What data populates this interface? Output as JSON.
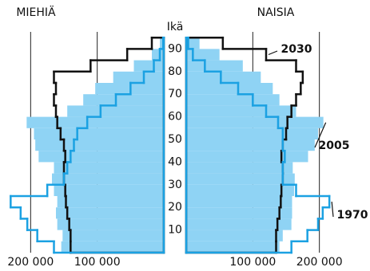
{
  "chart_data": {
    "type": "pyramid",
    "left_title": "MIEHIÄ",
    "right_title": "NAISIA",
    "y_label": "Ikä",
    "bins": [
      0,
      5,
      10,
      15,
      20,
      25,
      30,
      35,
      40,
      45,
      50,
      55,
      60,
      65,
      70,
      75,
      80,
      85,
      90,
      95
    ],
    "ylim": [
      0,
      100
    ],
    "yticks": [
      10,
      20,
      30,
      40,
      50,
      60,
      70,
      80,
      90
    ],
    "xlim": [
      0,
      240000
    ],
    "xticks": [
      {
        "value": 100000,
        "label": "100 000"
      },
      {
        "value": 200000,
        "label": "200 000"
      }
    ],
    "grid": true,
    "series": [
      {
        "name": "2030",
        "color": "#111111",
        "style": "line",
        "men": [
          140000,
          140000,
          142000,
          145000,
          147000,
          148000,
          150000,
          150000,
          148000,
          150000,
          155000,
          160000,
          162000,
          165000,
          162000,
          165000,
          110000,
          55000,
          18000
        ],
        "women": [
          135000,
          135000,
          137000,
          140000,
          142000,
          143000,
          145000,
          145000,
          143000,
          145000,
          150000,
          152000,
          158000,
          165000,
          172000,
          175000,
          165000,
          120000,
          55000
        ]
      },
      {
        "name": "2005",
        "color": "#8fd3f4",
        "style": "fill",
        "men": [
          154000,
          152000,
          160000,
          162000,
          160000,
          165000,
          168000,
          165000,
          188000,
          193000,
          195000,
          206000,
          145000,
          121000,
          103000,
          76000,
          45000,
          18000,
          6000
        ],
        "women": [
          140000,
          145000,
          158000,
          159000,
          159000,
          162000,
          163000,
          160000,
          183000,
          193000,
          198000,
          206000,
          165000,
          140000,
          130000,
          112000,
          85000,
          50000,
          20000
        ]
      },
      {
        "name": "1970",
        "color": "#1ba1e2",
        "style": "line",
        "men": [
          165000,
          190000,
          205000,
          215000,
          230000,
          175000,
          150000,
          145000,
          140000,
          135000,
          130000,
          115000,
          95000,
          72000,
          50000,
          30000,
          15000,
          6000,
          1000
        ],
        "women": [
          158000,
          182000,
          198000,
          205000,
          215000,
          165000,
          145000,
          145000,
          148000,
          145000,
          145000,
          138000,
          120000,
          100000,
          78000,
          52000,
          28000,
          10000,
          3000
        ]
      }
    ]
  }
}
